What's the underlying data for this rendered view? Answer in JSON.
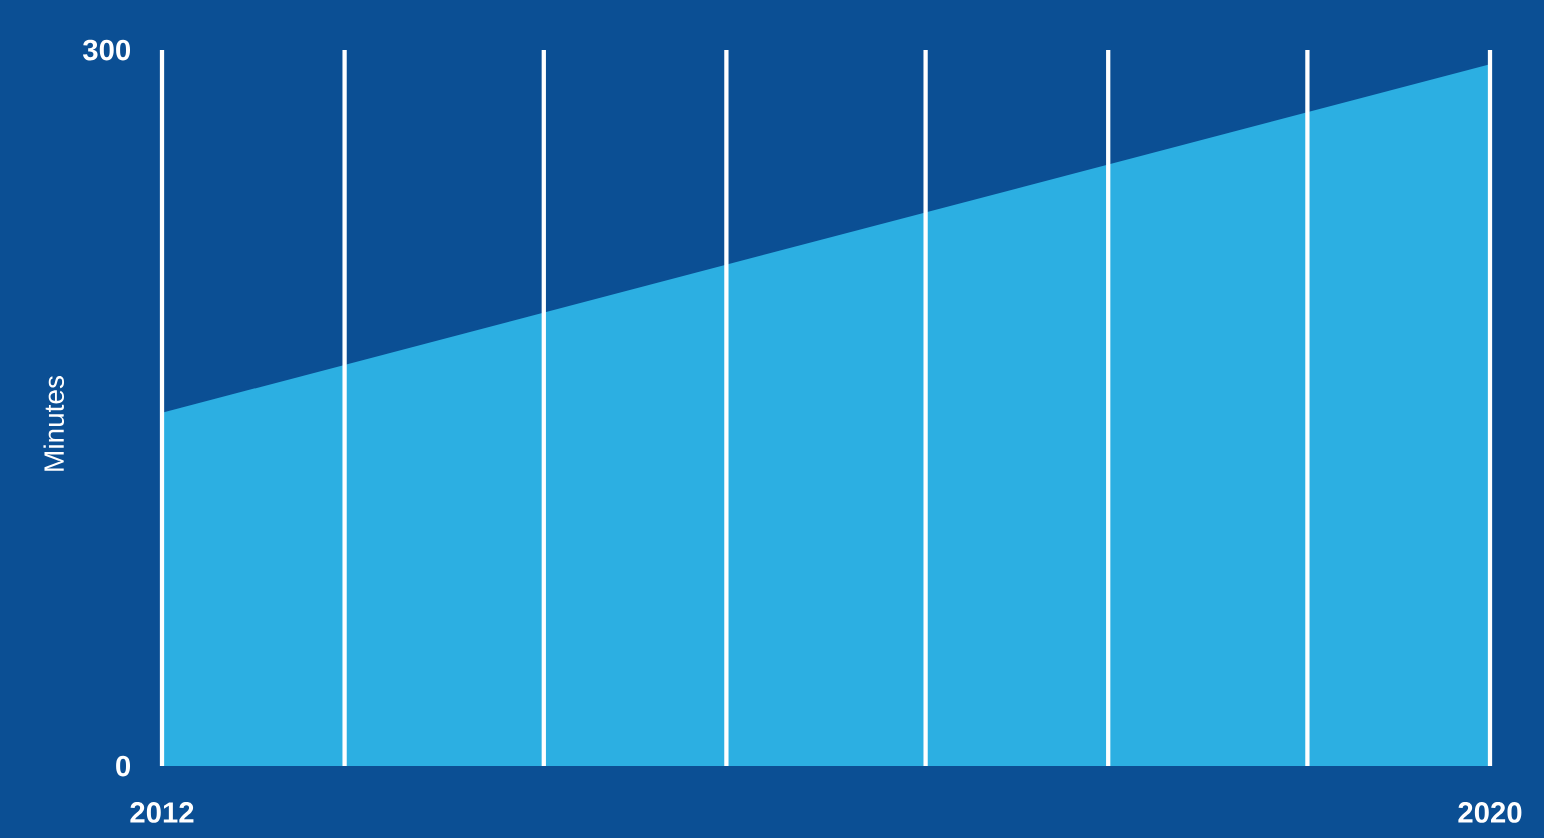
{
  "chart_data": {
    "type": "area",
    "ylabel": "Minutes",
    "x": [
      2012,
      2020
    ],
    "series": [
      {
        "color": "#2cafe2",
        "values": [
          148,
          294
        ]
      }
    ],
    "xlim": [
      2012,
      2020
    ],
    "ylim": [
      0,
      300
    ],
    "xticks": [
      2012,
      {
        "value": 2013.1,
        "label": null
      },
      {
        "value": 2014.3,
        "label": null
      },
      {
        "value": 2015.4,
        "label": null
      },
      {
        "value": 2016.6,
        "label": null
      },
      {
        "value": 2017.7,
        "label": null
      },
      {
        "value": 2018.9,
        "label": null
      },
      2020
    ],
    "yticks": [
      0,
      300
    ],
    "grid": "x"
  }
}
